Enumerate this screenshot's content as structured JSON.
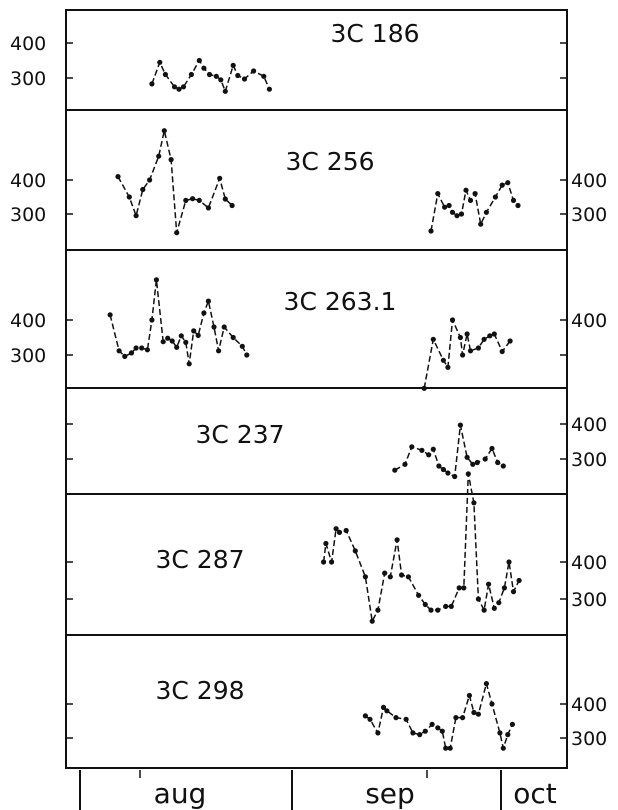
{
  "chart_data": [
    {
      "type": "line",
      "title": "3C 186",
      "y_ticks": {
        "left": [
          400,
          300
        ],
        "right": []
      },
      "segments": [
        [
          [
            0.76,
            283
          ],
          [
            0.83,
            345
          ],
          [
            0.88,
            310
          ],
          [
            0.96,
            275
          ],
          [
            1.0,
            268
          ],
          [
            1.04,
            275
          ],
          [
            1.11,
            310
          ],
          [
            1.18,
            350
          ],
          [
            1.22,
            328
          ],
          [
            1.27,
            310
          ],
          [
            1.33,
            305
          ],
          [
            1.37,
            295
          ],
          [
            1.41,
            262
          ],
          [
            1.48,
            336
          ],
          [
            1.52,
            307
          ],
          [
            1.58,
            297
          ],
          [
            1.66,
            320
          ],
          [
            1.75,
            305
          ],
          [
            1.8,
            268
          ]
        ]
      ]
    },
    {
      "type": "line",
      "title": "3C 256",
      "y_ticks": {
        "left": [
          400,
          300
        ],
        "right": [
          400,
          300
        ]
      },
      "segments": [
        [
          [
            0.46,
            410
          ],
          [
            0.56,
            350
          ],
          [
            0.62,
            295
          ],
          [
            0.68,
            372
          ],
          [
            0.74,
            400
          ],
          [
            0.82,
            470
          ],
          [
            0.87,
            545
          ],
          [
            0.93,
            460
          ],
          [
            0.98,
            245
          ],
          [
            1.06,
            340
          ],
          [
            1.12,
            345
          ],
          [
            1.18,
            340
          ],
          [
            1.26,
            318
          ],
          [
            1.36,
            405
          ],
          [
            1.41,
            344
          ],
          [
            1.47,
            325
          ]
        ],
        [
          [
            3.23,
            250
          ],
          [
            3.29,
            360
          ],
          [
            3.35,
            320
          ],
          [
            3.39,
            325
          ],
          [
            3.42,
            305
          ],
          [
            3.46,
            295
          ],
          [
            3.5,
            300
          ],
          [
            3.54,
            370
          ],
          [
            3.58,
            340
          ],
          [
            3.62,
            360
          ],
          [
            3.67,
            270
          ],
          [
            3.72,
            305
          ],
          [
            3.8,
            350
          ],
          [
            3.86,
            385
          ],
          [
            3.91,
            392
          ],
          [
            3.96,
            340
          ],
          [
            4.0,
            325
          ]
        ]
      ]
    },
    {
      "type": "line",
      "title": "3C 263.1",
      "y_ticks": {
        "left": [
          400,
          300
        ],
        "right": [
          400,
          null
        ]
      },
      "segments": [
        [
          [
            0.39,
            415
          ],
          [
            0.47,
            312
          ],
          [
            0.52,
            296
          ],
          [
            0.58,
            306
          ],
          [
            0.62,
            320
          ],
          [
            0.67,
            320
          ],
          [
            0.72,
            315
          ],
          [
            0.76,
            400
          ],
          [
            0.8,
            515
          ],
          [
            0.86,
            338
          ],
          [
            0.9,
            348
          ],
          [
            0.94,
            340
          ],
          [
            0.98,
            322
          ],
          [
            1.02,
            355
          ],
          [
            1.06,
            336
          ],
          [
            1.09,
            275
          ],
          [
            1.13,
            369
          ],
          [
            1.17,
            356
          ],
          [
            1.22,
            420
          ],
          [
            1.26,
            454
          ],
          [
            1.31,
            380
          ],
          [
            1.35,
            312
          ],
          [
            1.4,
            380
          ],
          [
            1.48,
            350
          ],
          [
            1.56,
            325
          ],
          [
            1.6,
            300
          ]
        ],
        [
          [
            3.17,
            205
          ],
          [
            3.25,
            345
          ],
          [
            3.34,
            285
          ],
          [
            3.38,
            265
          ],
          [
            3.42,
            400
          ],
          [
            3.49,
            350
          ],
          [
            3.51,
            300
          ],
          [
            3.55,
            360
          ],
          [
            3.58,
            312
          ],
          [
            3.65,
            320
          ],
          [
            3.7,
            345
          ],
          [
            3.75,
            355
          ],
          [
            3.79,
            360
          ],
          [
            3.86,
            310
          ],
          [
            3.93,
            340
          ]
        ]
      ]
    },
    {
      "type": "line",
      "title": "3C 237",
      "y_ticks": {
        "left": [],
        "right": [
          400,
          300
        ]
      },
      "segments": [
        [
          [
            2.91,
            268
          ],
          [
            3.0,
            285
          ],
          [
            3.06,
            335
          ],
          [
            3.15,
            325
          ],
          [
            3.21,
            312
          ],
          [
            3.25,
            328
          ],
          [
            3.3,
            280
          ],
          [
            3.34,
            270
          ],
          [
            3.38,
            260
          ],
          [
            3.44,
            250
          ],
          [
            3.49,
            397
          ],
          [
            3.55,
            305
          ],
          [
            3.6,
            285
          ],
          [
            3.64,
            290
          ],
          [
            3.71,
            300
          ],
          [
            3.77,
            330
          ],
          [
            3.82,
            290
          ],
          [
            3.87,
            280
          ]
        ]
      ]
    },
    {
      "type": "line",
      "title": "3C 287",
      "y_ticks": {
        "left": [],
        "right": [
          400,
          300
        ]
      },
      "segments": [
        [
          [
            2.28,
            400
          ],
          [
            2.3,
            450
          ],
          [
            2.35,
            400
          ],
          [
            2.39,
            490
          ],
          [
            2.42,
            480
          ],
          [
            2.48,
            485
          ],
          [
            2.56,
            430
          ],
          [
            2.65,
            360
          ],
          [
            2.71,
            240
          ],
          [
            2.76,
            270
          ],
          [
            2.82,
            370
          ],
          [
            2.87,
            360
          ],
          [
            2.93,
            460
          ],
          [
            2.97,
            365
          ],
          [
            3.03,
            360
          ],
          [
            3.12,
            310
          ],
          [
            3.18,
            285
          ],
          [
            3.23,
            270
          ],
          [
            3.29,
            270
          ],
          [
            3.36,
            280
          ],
          [
            3.41,
            280
          ],
          [
            3.48,
            330
          ],
          [
            3.52,
            330
          ],
          [
            3.56,
            638
          ],
          [
            3.61,
            560
          ],
          [
            3.65,
            300
          ],
          [
            3.7,
            270
          ],
          [
            3.74,
            340
          ],
          [
            3.79,
            275
          ],
          [
            3.83,
            290
          ],
          [
            3.88,
            330
          ],
          [
            3.92,
            400
          ],
          [
            3.96,
            320
          ],
          [
            4.01,
            350
          ]
        ]
      ]
    },
    {
      "type": "line",
      "title": "3C 298",
      "y_ticks": {
        "left": [],
        "right": [
          400,
          300
        ]
      },
      "segments": [
        [
          [
            2.65,
            365
          ],
          [
            2.69,
            355
          ],
          [
            2.76,
            315
          ],
          [
            2.81,
            390
          ],
          [
            2.84,
            380
          ],
          [
            2.92,
            360
          ],
          [
            3.01,
            355
          ],
          [
            3.07,
            315
          ],
          [
            3.13,
            310
          ],
          [
            3.18,
            320
          ],
          [
            3.24,
            340
          ],
          [
            3.29,
            330
          ],
          [
            3.33,
            320
          ],
          [
            3.36,
            270
          ],
          [
            3.4,
            270
          ],
          [
            3.45,
            360
          ],
          [
            3.51,
            360
          ],
          [
            3.57,
            425
          ],
          [
            3.61,
            375
          ],
          [
            3.65,
            370
          ],
          [
            3.72,
            460
          ],
          [
            3.77,
            400
          ],
          [
            3.84,
            315
          ],
          [
            3.87,
            270
          ],
          [
            3.91,
            310
          ],
          [
            3.95,
            340
          ]
        ]
      ]
    }
  ],
  "x_axis": {
    "labels": [
      "aug",
      "sep",
      "oct"
    ]
  }
}
